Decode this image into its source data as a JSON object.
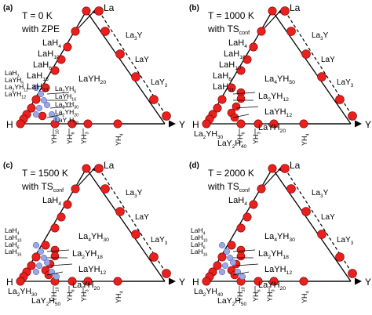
{
  "panels": [
    {
      "letter": "(a)",
      "cond1": "T = 0 K",
      "cond2": "with ZPE",
      "cond2_sub": "",
      "black": [
        {
          "text": "LaH",
          "sub": "4"
        },
        {
          "text": "LaH",
          "sub": "10"
        },
        {
          "text": "LaH",
          "sub": "6"
        },
        {
          "text": "LaH",
          "sub": "16"
        },
        {
          "text": "LaH",
          "sub": "13"
        },
        {
          "text": "LaYH",
          "sub": "20"
        }
      ],
      "blue": [
        {
          "text": "LaH",
          "sub": "3"
        },
        {
          "text": "LaYH",
          "sub": "5"
        },
        {
          "text": "La",
          "sub": "2",
          "text2": "YH",
          "sub2": "12"
        },
        {
          "text": "LaYH",
          "sub": "12"
        },
        {
          "text": "La",
          "sub": "2",
          "text2": "YH",
          "sub2": "6"
        },
        {
          "text": "LaYH",
          "sub": "16"
        },
        {
          "text": "La",
          "sub": "2",
          "text2": "YH",
          "sub2": "30"
        },
        {
          "text": "La",
          "sub": "2",
          "text2": "YH",
          "sub2": "20"
        },
        {
          "text": "LaY",
          "sub": "2",
          "text2": "H",
          "sub2": "18"
        }
      ],
      "bottom_black": [],
      "yh_labels": [
        {
          "text": "YH",
          "sub": "10",
          "blue": true
        },
        {
          "text": "YH",
          "sub": "6",
          "blue": false
        },
        {
          "text": "YH",
          "sub": "3",
          "blue": false
        }
      ],
      "yh_right": {
        "text": "YH",
        "sub": "4"
      }
    },
    {
      "letter": "(b)",
      "cond1": "T = 1000 K",
      "cond2": "with TS",
      "cond2_sub": "conf",
      "black": [
        {
          "text": "LaH",
          "sub": "4"
        },
        {
          "text": "LaH",
          "sub": "16"
        },
        {
          "text": "LaH",
          "sub": "10"
        },
        {
          "text": "LaH",
          "sub": "6"
        },
        {
          "text": "LaH",
          "sub": "11"
        },
        {
          "text": "La",
          "sub": "4",
          "text2": "YH",
          "sub2": "50"
        },
        {
          "text": "La",
          "sub": "2",
          "text2": "YH",
          "sub2": "12"
        },
        {
          "text": "LaYH",
          "sub": "12"
        },
        {
          "text": "LaYH",
          "sub": "20"
        }
      ],
      "blue": [],
      "bottom_black": [
        {
          "text": "La",
          "sub": "2",
          "text2": "YH",
          "sub2": "30"
        },
        {
          "text": "LaY",
          "sub": "2",
          "text2": "H",
          "sub2": "40"
        }
      ],
      "yh_labels": [
        {
          "text": "YH",
          "sub": "6",
          "blue": false
        },
        {
          "text": "YH",
          "sub": "3",
          "blue": false
        }
      ],
      "yh_right": {
        "text": "YH",
        "sub": "4"
      }
    },
    {
      "letter": "(c)",
      "cond1": "T = 1500 K",
      "cond2": "with TS",
      "cond2_sub": "conf",
      "black": [
        {
          "text": "LaH",
          "sub": "4"
        },
        {
          "text": "La",
          "sub": "4",
          "text2": "YH",
          "sub2": "30"
        },
        {
          "text": "La",
          "sub": "2",
          "text2": "YH",
          "sub2": "18"
        },
        {
          "text": "LaYH",
          "sub": "12"
        },
        {
          "text": "LaYH",
          "sub": "20"
        }
      ],
      "blue": [
        {
          "text": "LaH",
          "sub": "4"
        },
        {
          "text": "LaH",
          "sub": "10"
        },
        {
          "text": "LaH",
          "sub": "6"
        },
        {
          "text": "LaH",
          "sub": "16"
        }
      ],
      "bottom_black": [
        {
          "text": "La",
          "sub": "2",
          "text2": "YH",
          "sub2": "30"
        },
        {
          "text": "LaY",
          "sub": "2",
          "text2": "H",
          "sub2": "50"
        }
      ],
      "yh_labels": [
        {
          "text": "YH",
          "sub": "10",
          "blue": true
        },
        {
          "text": "YH",
          "sub": "6",
          "blue": true
        },
        {
          "text": "YH",
          "sub": "3",
          "blue": false
        }
      ],
      "yh_right": {
        "text": "YH",
        "sub": "4"
      }
    },
    {
      "letter": "(d)",
      "cond1": "T = 2000 K",
      "cond2": "with TS",
      "cond2_sub": "conf",
      "black": [
        {
          "text": "LaH",
          "sub": "4"
        },
        {
          "text": "La",
          "sub": "4",
          "text2": "YH",
          "sub2": "30"
        },
        {
          "text": "La",
          "sub": "2",
          "text2": "YH",
          "sub2": "18"
        },
        {
          "text": "LaYH",
          "sub": "12"
        },
        {
          "text": "LaYH",
          "sub": "20"
        }
      ],
      "blue": [
        {
          "text": "LaH",
          "sub": "4"
        },
        {
          "text": "LaH",
          "sub": "10"
        },
        {
          "text": "LaH",
          "sub": "6"
        },
        {
          "text": "LaH",
          "sub": "16"
        }
      ],
      "bottom_black": [
        {
          "text": "La",
          "sub": "2",
          "text2": "YH",
          "sub2": "40"
        },
        {
          "text": "LaY",
          "sub": "2",
          "text2": "H",
          "sub2": "50"
        }
      ],
      "yh_labels": [
        {
          "text": "YH",
          "sub": "10",
          "blue": true
        },
        {
          "text": "YH",
          "sub": "6",
          "blue": true
        },
        {
          "text": "YH",
          "sub": "3",
          "blue": false
        }
      ],
      "yh_right": {
        "text": "YH",
        "sub": "4"
      }
    }
  ],
  "vertices": {
    "top": "La",
    "left": "H",
    "right": "Y"
  },
  "edge_labels": [
    {
      "text": "La",
      "sub": "3",
      "text2": "Y",
      "sub2": ""
    },
    {
      "text": "LaY",
      "sub": "",
      "text2": "",
      "sub2": ""
    },
    {
      "text": "LaY",
      "sub": "3",
      "text2": "",
      "sub2": ""
    }
  ],
  "colors": {
    "red": "#e8201e",
    "blue_point": "#9aa6e6",
    "blue_text": "#2a4fcf",
    "line": "#000000"
  }
}
